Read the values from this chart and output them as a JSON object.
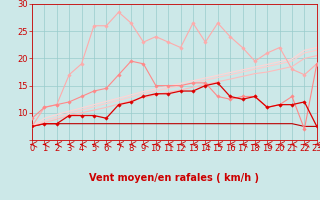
{
  "x": [
    0,
    1,
    2,
    3,
    4,
    5,
    6,
    7,
    8,
    9,
    10,
    11,
    12,
    13,
    14,
    15,
    16,
    17,
    18,
    19,
    20,
    21,
    22,
    23
  ],
  "lines": [
    {
      "y": [
        7.5,
        11,
        11.5,
        17,
        19,
        26,
        26,
        28.5,
        26.5,
        23,
        24,
        23,
        22,
        26.5,
        23,
        26.5,
        24,
        22,
        19.5,
        21,
        22,
        18,
        17,
        19
      ],
      "color": "#ffaaaa",
      "lw": 0.8,
      "marker": "D",
      "ms": 1.8,
      "zorder": 3
    },
    {
      "y": [
        9,
        11,
        11.5,
        12,
        13,
        14,
        14.5,
        17,
        19.5,
        19,
        15,
        15,
        15,
        15.5,
        15.5,
        13,
        12.5,
        13,
        13,
        11,
        11.5,
        13,
        7,
        19
      ],
      "color": "#ff8888",
      "lw": 0.8,
      "marker": "D",
      "ms": 1.8,
      "zorder": 3
    },
    {
      "y": [
        7.5,
        8,
        8,
        9.5,
        9.5,
        9.5,
        9,
        11.5,
        12,
        13,
        13.5,
        13.5,
        14,
        14,
        15,
        15.5,
        13,
        12.5,
        13,
        11,
        11.5,
        11.5,
        12,
        7.5
      ],
      "color": "#dd0000",
      "lw": 0.9,
      "marker": "D",
      "ms": 1.8,
      "zorder": 4
    },
    {
      "y": [
        7.5,
        8,
        8,
        8,
        8,
        8,
        8,
        8,
        8,
        8,
        8,
        8,
        8,
        8,
        8,
        8,
        8,
        8,
        8,
        8,
        8,
        8,
        7.5,
        7.5
      ],
      "color": "#bb0000",
      "lw": 0.8,
      "marker": null,
      "ms": 0,
      "zorder": 2
    },
    {
      "y": [
        7.5,
        8.2,
        8.8,
        9.5,
        10.0,
        10.5,
        11.0,
        11.6,
        12.2,
        12.8,
        13.3,
        13.8,
        14.2,
        14.7,
        15.2,
        15.7,
        16.2,
        16.7,
        17.2,
        17.5,
        18.0,
        18.5,
        20.0,
        20.5
      ],
      "color": "#ffbbbb",
      "lw": 0.8,
      "marker": null,
      "ms": 0,
      "zorder": 2
    },
    {
      "y": [
        7.5,
        8.5,
        9.2,
        9.9,
        10.5,
        11.1,
        11.7,
        12.3,
        12.9,
        13.5,
        14.0,
        14.5,
        15.0,
        15.5,
        16.0,
        16.5,
        17.0,
        17.5,
        18.0,
        18.5,
        19.0,
        19.5,
        21.0,
        21.5
      ],
      "color": "#ffcccc",
      "lw": 0.8,
      "marker": null,
      "ms": 0,
      "zorder": 2
    },
    {
      "y": [
        7.5,
        9.0,
        9.7,
        10.3,
        10.9,
        11.5,
        12.1,
        12.7,
        13.3,
        13.9,
        14.4,
        14.9,
        15.4,
        15.9,
        16.4,
        16.9,
        17.4,
        17.9,
        18.4,
        18.9,
        19.4,
        19.9,
        21.5,
        22.0
      ],
      "color": "#ffd5d5",
      "lw": 0.8,
      "marker": null,
      "ms": 0,
      "zorder": 2
    }
  ],
  "xlabel": "Vent moyen/en rafales ( km/h )",
  "xlim": [
    0,
    23
  ],
  "ylim": [
    5,
    30
  ],
  "yticks": [
    5,
    10,
    15,
    20,
    25,
    30
  ],
  "ytick_labels": [
    "",
    "10",
    "15",
    "20",
    "25",
    "30"
  ],
  "xticks": [
    0,
    1,
    2,
    3,
    4,
    5,
    6,
    7,
    8,
    9,
    10,
    11,
    12,
    13,
    14,
    15,
    16,
    17,
    18,
    19,
    20,
    21,
    22,
    23
  ],
  "bg_color": "#cce8e8",
  "grid_color": "#99cccc",
  "xlabel_color": "#cc0000",
  "xlabel_fontsize": 7.0,
  "tick_fontsize": 6.0,
  "tick_color": "#cc0000",
  "spine_color": "#cc0000",
  "arrow_color": "#cc0000"
}
